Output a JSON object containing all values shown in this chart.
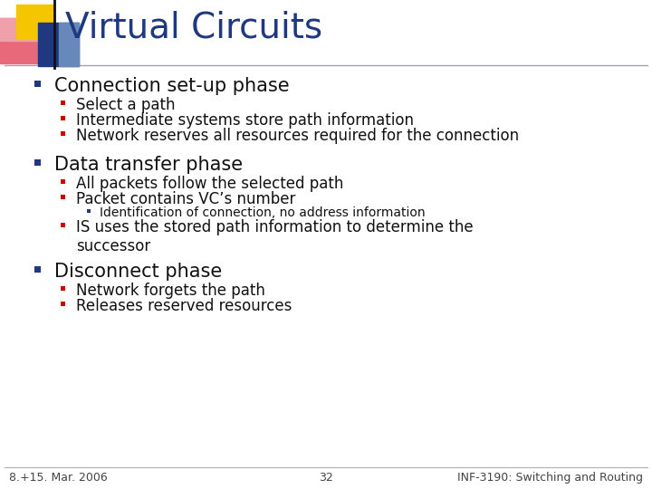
{
  "title": "Virtual Circuits",
  "title_color": "#1F3880",
  "title_fontsize": 28,
  "background_color": "#FFFFFF",
  "bullet_color_main": "#1F3880",
  "bullet_color_sub": "#CC0000",
  "bullet_color_subsub": "#1F3880",
  "main_fontsize": 15,
  "sub_fontsize": 12,
  "subsub_fontsize": 10,
  "footer_fontsize": 9,
  "footer_left": "8.+15. Mar. 2006",
  "footer_center": "32",
  "footer_right": "INF-3190: Switching and Routing",
  "content": [
    {
      "level": 1,
      "text": "Connection set-up phase",
      "children": [
        {
          "level": 2,
          "text": "Select a path",
          "children": []
        },
        {
          "level": 2,
          "text": "Intermediate systems store path information",
          "children": []
        },
        {
          "level": 2,
          "text": "Network reserves all resources required for the connection",
          "children": []
        }
      ]
    },
    {
      "level": 1,
      "text": "Data transfer phase",
      "children": [
        {
          "level": 2,
          "text": "All packets follow the selected path",
          "children": []
        },
        {
          "level": 2,
          "text": "Packet contains VC’s number",
          "children": [
            {
              "level": 3,
              "text": "Identification of connection, no address information",
              "children": []
            }
          ]
        },
        {
          "level": 2,
          "text": "IS uses the stored path information to determine the\nsuccessor",
          "children": []
        }
      ]
    },
    {
      "level": 1,
      "text": "Disconnect phase",
      "children": [
        {
          "level": 2,
          "text": "Network forgets the path",
          "children": []
        },
        {
          "level": 2,
          "text": "Releases reserved resources",
          "children": []
        }
      ]
    }
  ]
}
